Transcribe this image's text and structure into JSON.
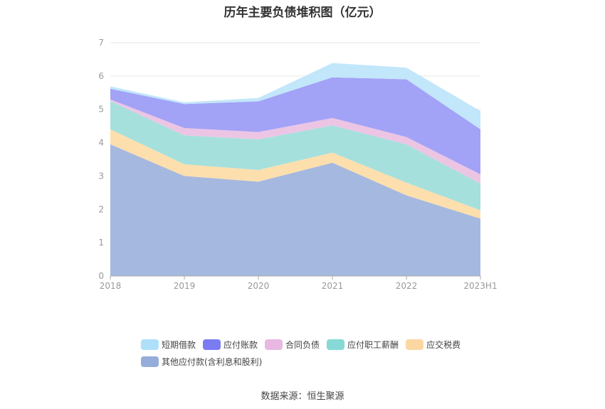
{
  "chart_data": {
    "type": "area",
    "stacked": true,
    "title": "历年主要负债堆积图（亿元）",
    "categories": [
      "2018",
      "2019",
      "2020",
      "2021",
      "2022",
      "2023H1"
    ],
    "ylim": [
      0,
      7
    ],
    "yticks": [
      "0",
      "1",
      "2",
      "3",
      "4",
      "5",
      "6",
      "7"
    ],
    "grid": true,
    "legend_position": "bottom",
    "series": [
      {
        "name": "其他应付款(含利息和股利)",
        "color": "#a5b8e0",
        "values": [
          3.95,
          3.0,
          2.83,
          3.4,
          2.42,
          1.72
        ]
      },
      {
        "name": "应交税费",
        "color": "#fddfad",
        "values": [
          0.45,
          0.35,
          0.35,
          0.3,
          0.38,
          0.25
        ]
      },
      {
        "name": "应付职工薪酬",
        "color": "#a6e0dc",
        "values": [
          0.85,
          0.87,
          0.92,
          0.82,
          1.15,
          0.8
        ]
      },
      {
        "name": "合同负债",
        "color": "#ecc5e5",
        "values": [
          0.05,
          0.22,
          0.22,
          0.22,
          0.22,
          0.28
        ]
      },
      {
        "name": "应付账款",
        "color": "#a2a2f7",
        "values": [
          0.32,
          0.72,
          0.92,
          1.22,
          1.73,
          1.35
        ]
      },
      {
        "name": "短期借款",
        "color": "#c2e6fa",
        "values": [
          0.07,
          0.05,
          0.1,
          0.43,
          0.35,
          0.55
        ]
      }
    ]
  },
  "legend": {
    "items": [
      {
        "label": "短期借款",
        "color": "#aee0fb"
      },
      {
        "label": "应付账款",
        "color": "#7b7cf2"
      },
      {
        "label": "合同负债",
        "color": "#e8b8e2"
      },
      {
        "label": "应付职工薪酬",
        "color": "#86d9d6"
      },
      {
        "label": "应交税费",
        "color": "#fdd7a2"
      },
      {
        "label": "其他应付款(含利息和股利)",
        "color": "#96add9"
      }
    ]
  },
  "source": "数据来源：恒生聚源"
}
